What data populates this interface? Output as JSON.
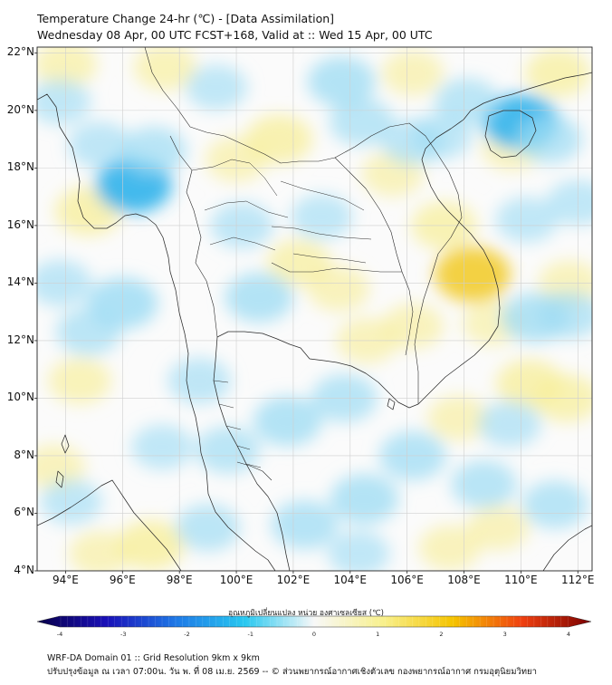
{
  "title": {
    "line1": "Temperature Change 24-hr (℃) - [Data Assimilation]",
    "line2": "Wednesday 08 Apr, 00 UTC FCST+168, Valid at :: Wed 15 Apr, 00 UTC"
  },
  "map": {
    "extent": {
      "lon_min": 93,
      "lon_max": 112.5,
      "lat_min": 4,
      "lat_max": 22.2
    },
    "lat_labels": [
      {
        "value": 22,
        "label": "22°N"
      },
      {
        "value": 20,
        "label": "20°N"
      },
      {
        "value": 18,
        "label": "18°N"
      },
      {
        "value": 16,
        "label": "16°N"
      },
      {
        "value": 14,
        "label": "14°N"
      },
      {
        "value": 12,
        "label": "12°N"
      },
      {
        "value": 10,
        "label": "10°N"
      },
      {
        "value": 8,
        "label": "8°N"
      },
      {
        "value": 6,
        "label": "6°N"
      },
      {
        "value": 4,
        "label": "4°N"
      }
    ],
    "lon_labels": [
      {
        "value": 94,
        "label": "94°E"
      },
      {
        "value": 96,
        "label": "96°E"
      },
      {
        "value": 98,
        "label": "98°E"
      },
      {
        "value": 100,
        "label": "100°E"
      },
      {
        "value": 102,
        "label": "102°E"
      },
      {
        "value": 104,
        "label": "104°E"
      },
      {
        "value": 106,
        "label": "106°E"
      },
      {
        "value": 108,
        "label": "108°E"
      },
      {
        "value": 110,
        "label": "110°E"
      },
      {
        "value": 112,
        "label": "112°E"
      }
    ],
    "background_color": "#fbfbfb",
    "grid": true
  },
  "anomalies": [
    {
      "lon": 94.0,
      "lat": 21.6,
      "type": "warm",
      "level": 0.35
    },
    {
      "lon": 97.5,
      "lat": 21.5,
      "type": "warm",
      "level": 0.35
    },
    {
      "lon": 101.5,
      "lat": 19.0,
      "type": "warm",
      "level": 0.5
    },
    {
      "lon": 100.0,
      "lat": 18.3,
      "type": "warm",
      "level": 0.3
    },
    {
      "lon": 102.2,
      "lat": 14.7,
      "type": "warm",
      "level": 0.4
    },
    {
      "lon": 103.6,
      "lat": 13.8,
      "type": "warm",
      "level": 0.3
    },
    {
      "lon": 105.5,
      "lat": 17.8,
      "type": "warm",
      "level": 0.3
    },
    {
      "lon": 108.3,
      "lat": 14.3,
      "type": "warm",
      "level": 0.85
    },
    {
      "lon": 107.3,
      "lat": 16.0,
      "type": "warm",
      "level": 0.45
    },
    {
      "lon": 106.2,
      "lat": 12.5,
      "type": "warm",
      "level": 0.3
    },
    {
      "lon": 104.6,
      "lat": 12.0,
      "type": "warm",
      "level": 0.3
    },
    {
      "lon": 110.3,
      "lat": 10.5,
      "type": "warm",
      "level": 0.5
    },
    {
      "lon": 111.6,
      "lat": 10.0,
      "type": "warm",
      "level": 0.45
    },
    {
      "lon": 107.8,
      "lat": 9.3,
      "type": "warm",
      "level": 0.3
    },
    {
      "lon": 94.5,
      "lat": 10.6,
      "type": "warm",
      "level": 0.35
    },
    {
      "lon": 94.8,
      "lat": 16.5,
      "type": "warm",
      "level": 0.5
    },
    {
      "lon": 97.0,
      "lat": 4.9,
      "type": "warm",
      "level": 0.55
    },
    {
      "lon": 95.2,
      "lat": 4.6,
      "type": "warm",
      "level": 0.3
    },
    {
      "lon": 93.6,
      "lat": 7.6,
      "type": "warm",
      "level": 0.3
    },
    {
      "lon": 107.5,
      "lat": 4.8,
      "type": "warm",
      "level": 0.3
    },
    {
      "lon": 109.2,
      "lat": 5.5,
      "type": "warm",
      "level": 0.3
    },
    {
      "lon": 111.3,
      "lat": 21.3,
      "type": "warm",
      "level": 0.45
    },
    {
      "lon": 109.7,
      "lat": 18.7,
      "type": "warm",
      "level": 0.3
    },
    {
      "lon": 106.2,
      "lat": 21.3,
      "type": "warm",
      "level": 0.3
    },
    {
      "lon": 111.7,
      "lat": 14.0,
      "type": "warm",
      "level": 0.3
    },
    {
      "lon": 109.0,
      "lat": 12.6,
      "type": "warm",
      "level": 0.25
    },
    {
      "lon": 96.4,
      "lat": 17.4,
      "type": "cool",
      "level": 0.85
    },
    {
      "lon": 97.1,
      "lat": 18.6,
      "type": "cool",
      "level": 0.45
    },
    {
      "lon": 95.2,
      "lat": 18.8,
      "type": "cool",
      "level": 0.35
    },
    {
      "lon": 110.0,
      "lat": 19.6,
      "type": "cool",
      "level": 0.85
    },
    {
      "lon": 111.0,
      "lat": 19.0,
      "type": "cool",
      "level": 0.45
    },
    {
      "lon": 96.0,
      "lat": 13.3,
      "type": "cool",
      "level": 0.65
    },
    {
      "lon": 94.8,
      "lat": 12.3,
      "type": "cool",
      "level": 0.4
    },
    {
      "lon": 100.8,
      "lat": 13.5,
      "type": "cool",
      "level": 0.55
    },
    {
      "lon": 101.8,
      "lat": 9.2,
      "type": "cool",
      "level": 0.55
    },
    {
      "lon": 103.8,
      "lat": 10.0,
      "type": "cool",
      "level": 0.45
    },
    {
      "lon": 104.5,
      "lat": 6.5,
      "type": "cool",
      "level": 0.55
    },
    {
      "lon": 106.2,
      "lat": 8.0,
      "type": "cool",
      "level": 0.5
    },
    {
      "lon": 102.4,
      "lat": 5.6,
      "type": "cool",
      "level": 0.5
    },
    {
      "lon": 99.0,
      "lat": 5.5,
      "type": "cool",
      "level": 0.4
    },
    {
      "lon": 99.7,
      "lat": 8.2,
      "type": "cool",
      "level": 0.4
    },
    {
      "lon": 98.7,
      "lat": 10.6,
      "type": "cool",
      "level": 0.35
    },
    {
      "lon": 97.4,
      "lat": 8.3,
      "type": "cool",
      "level": 0.3
    },
    {
      "lon": 103.7,
      "lat": 21.0,
      "type": "cool",
      "level": 0.55
    },
    {
      "lon": 104.4,
      "lat": 19.6,
      "type": "cool",
      "level": 0.4
    },
    {
      "lon": 106.2,
      "lat": 18.9,
      "type": "cool",
      "level": 0.35
    },
    {
      "lon": 108.1,
      "lat": 20.3,
      "type": "cool",
      "level": 0.4
    },
    {
      "lon": 107.2,
      "lat": 19.1,
      "type": "cool",
      "level": 0.3
    },
    {
      "lon": 110.5,
      "lat": 12.8,
      "type": "cool",
      "level": 0.55
    },
    {
      "lon": 111.7,
      "lat": 12.9,
      "type": "cool",
      "level": 0.4
    },
    {
      "lon": 109.6,
      "lat": 9.1,
      "type": "cool",
      "level": 0.35
    },
    {
      "lon": 108.7,
      "lat": 7.0,
      "type": "cool",
      "level": 0.45
    },
    {
      "lon": 111.2,
      "lat": 6.3,
      "type": "cool",
      "level": 0.45
    },
    {
      "lon": 110.2,
      "lat": 16.2,
      "type": "cool",
      "level": 0.3
    },
    {
      "lon": 112.0,
      "lat": 16.8,
      "type": "cool",
      "level": 0.3
    },
    {
      "lon": 93.8,
      "lat": 14.0,
      "type": "cool",
      "level": 0.35
    },
    {
      "lon": 93.8,
      "lat": 20.3,
      "type": "cool",
      "level": 0.3
    },
    {
      "lon": 100.2,
      "lat": 16.0,
      "type": "cool",
      "level": 0.35
    },
    {
      "lon": 103.0,
      "lat": 16.3,
      "type": "cool",
      "level": 0.3
    },
    {
      "lon": 99.3,
      "lat": 20.8,
      "type": "cool",
      "level": 0.3
    },
    {
      "lon": 94.2,
      "lat": 6.4,
      "type": "cool",
      "level": 0.3
    },
    {
      "lon": 104.3,
      "lat": 4.6,
      "type": "cool",
      "level": 0.3
    }
  ],
  "colorbar": {
    "title": "อุณหภูมิเปลี่ยนแปลง หน่วย องศาเซลเซียส (℃)",
    "min": -4,
    "max": 4,
    "tick_values": [
      -4,
      -3,
      -2,
      -1,
      0,
      1,
      2,
      3,
      4
    ],
    "tick_labels": [
      "-4",
      "-3",
      "-2",
      "-1",
      "0",
      "1",
      "2",
      "3",
      "4"
    ],
    "color_stops": [
      "#08004a",
      "#1a10b8",
      "#1e78e6",
      "#28c8f0",
      "#f8f8f8",
      "#f8f08c",
      "#f5c400",
      "#f04010",
      "#7a0000"
    ]
  },
  "footer": {
    "line1": "WRF-DA Domain 01 :: Grid Resolution 9km x 9km",
    "line2": "ปรับปรุงข้อมูล ณ เวลา 07:00น. วัน พ. ที่ 08 เม.ย. 2569 -- © ส่วนพยากรณ์อากาศเชิงตัวเลข กองพยากรณ์อากาศ กรมอุตุนิยมวิทยา"
  }
}
